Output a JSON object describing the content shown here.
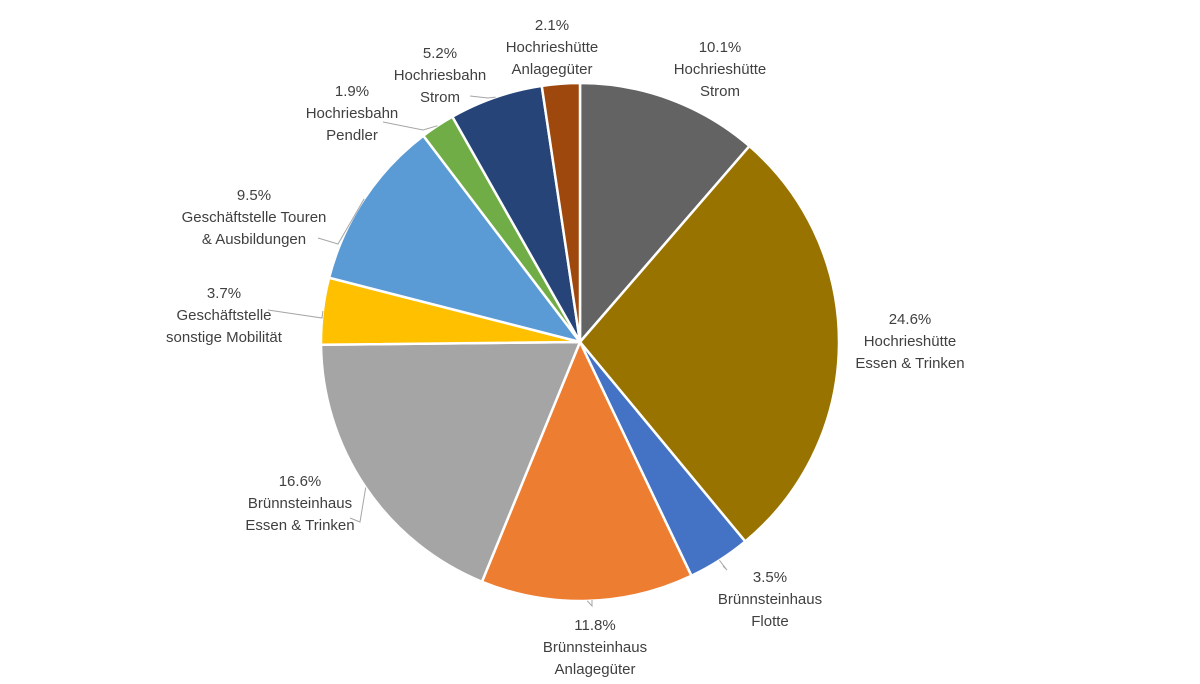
{
  "chart_data": {
    "type": "pie",
    "title": "",
    "slices": [
      {
        "lines": [
          "10.1%",
          "Hochrieshütte",
          "Strom"
        ],
        "value": 10.1,
        "color": "#636363"
      },
      {
        "lines": [
          "24.6%",
          "Hochrieshütte",
          "Essen & Trinken"
        ],
        "value": 24.6,
        "color": "#997300"
      },
      {
        "lines": [
          "3.5%",
          "Brünnsteinhaus",
          "Flotte"
        ],
        "value": 3.5,
        "color": "#4472c4"
      },
      {
        "lines": [
          "11.8%",
          "Brünnsteinhaus",
          "Anlagegüter"
        ],
        "value": 11.8,
        "color": "#ed7d31"
      },
      {
        "lines": [
          "16.6%",
          "Brünnsteinhaus",
          "Essen & Trinken"
        ],
        "value": 16.6,
        "color": "#a5a5a5"
      },
      {
        "lines": [
          "3.7%",
          "Geschäftstelle",
          "sonstige Mobilität"
        ],
        "value": 3.7,
        "color": "#ffc000"
      },
      {
        "lines": [
          "9.5%",
          "Geschäftstelle Touren",
          "& Ausbildungen"
        ],
        "value": 9.5,
        "color": "#5b9bd5"
      },
      {
        "lines": [
          "1.9%",
          "Hochriesbahn",
          "Pendler"
        ],
        "value": 1.9,
        "color": "#70ad47"
      },
      {
        "lines": [
          "5.2%",
          "Hochriesbahn",
          "Strom"
        ],
        "value": 5.2,
        "color": "#264478"
      },
      {
        "lines": [
          "2.1%",
          "Hochrieshütte",
          "Anlagegüter"
        ],
        "value": 2.1,
        "color": "#9e480e"
      }
    ]
  }
}
